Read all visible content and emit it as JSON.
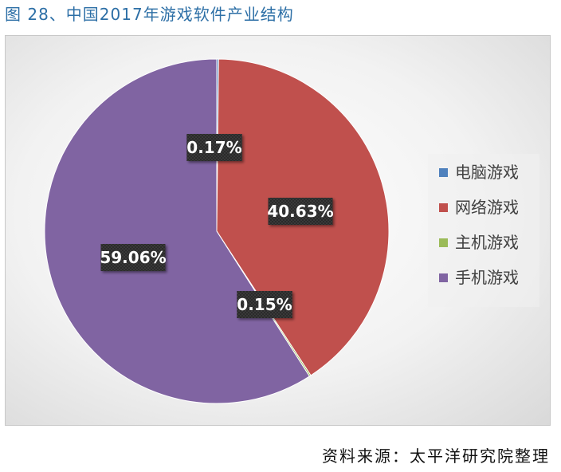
{
  "figure": {
    "title": "图 28、中国2017年游戏软件产业结构",
    "source": "资料来源：太平洋研究院整理"
  },
  "chart_data": {
    "type": "pie",
    "title": "",
    "categories": [
      "电脑游戏",
      "网络游戏",
      "主机游戏",
      "手机游戏"
    ],
    "values": [
      0.17,
      40.63,
      0.15,
      59.06
    ],
    "unit": "%",
    "data_labels": [
      "0.17%",
      "40.63%",
      "0.15%",
      "59.06%"
    ],
    "colors": [
      "#4f81bd",
      "#c0504d",
      "#9bbb59",
      "#8064a2"
    ],
    "start_angle": "12 o'clock",
    "direction": "clockwise",
    "legend": "right"
  }
}
